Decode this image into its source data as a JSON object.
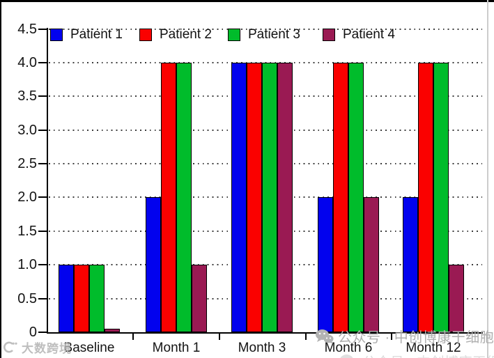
{
  "chart_data": {
    "type": "bar",
    "title": "",
    "categories": [
      "Baseline",
      "Month 1",
      "Month 3",
      "Month 6",
      "Month 12"
    ],
    "series": [
      {
        "name": "Patient 1",
        "color": "#0202EE",
        "values": [
          1,
          2,
          4,
          2,
          2
        ]
      },
      {
        "name": "Patient 2",
        "color": "#FA0100",
        "values": [
          1,
          4,
          4,
          4,
          4
        ]
      },
      {
        "name": "Patient 3",
        "color": "#00BC2B",
        "values": [
          1,
          4,
          4,
          4,
          4
        ]
      },
      {
        "name": "Patient 4",
        "color": "#9A1A53",
        "values": [
          0.05,
          1,
          4,
          2,
          1
        ]
      }
    ],
    "ylim": [
      0,
      4.5
    ],
    "ytick_step": 0.5,
    "ytick_labels": [
      "0",
      "0.5",
      "1.0",
      "1.5",
      "2.0",
      "2.5",
      "3.0",
      "3.5",
      "4.0",
      "4.5"
    ],
    "xlabel": "",
    "ylabel": "",
    "grid": "dotted horizontal line at every 0.5",
    "legend_position": "top inside, horizontal row",
    "bar_border_color": "#000000"
  },
  "watermarks": {
    "bottom_left": {
      "icon": "dashukuajing-logo-icon",
      "text": "大数跨境"
    },
    "bottom_right": {
      "icon": "wechat-icon",
      "text": "公众号 · 中创博康干细胞"
    },
    "bottom_clipped": {
      "icon": "wechat-icon",
      "text": "公众号 · 中创博康干细胞"
    }
  }
}
